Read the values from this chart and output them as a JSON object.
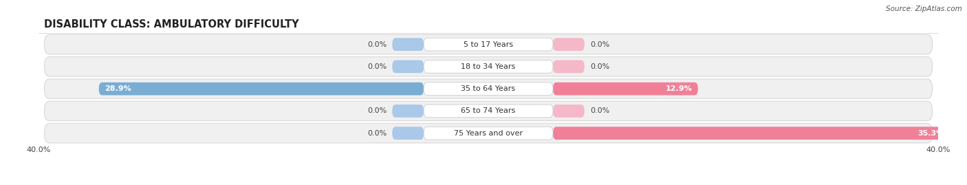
{
  "title": "DISABILITY CLASS: AMBULATORY DIFFICULTY",
  "source": "Source: ZipAtlas.com",
  "categories": [
    "5 to 17 Years",
    "18 to 34 Years",
    "35 to 64 Years",
    "65 to 74 Years",
    "75 Years and over"
  ],
  "male_values": [
    0.0,
    0.0,
    28.9,
    0.0,
    0.0
  ],
  "female_values": [
    0.0,
    0.0,
    12.9,
    0.0,
    35.3
  ],
  "max_val": 40.0,
  "male_color": "#7aadd4",
  "female_color": "#f08098",
  "male_color_light": "#aac8e8",
  "female_color_light": "#f5b8c8",
  "row_bg_color": "#f0f0f0",
  "row_bg_border": "#d8d8d8",
  "title_fontsize": 10.5,
  "label_fontsize": 8,
  "tick_fontsize": 8,
  "source_fontsize": 7.5,
  "background_color": "#ffffff"
}
